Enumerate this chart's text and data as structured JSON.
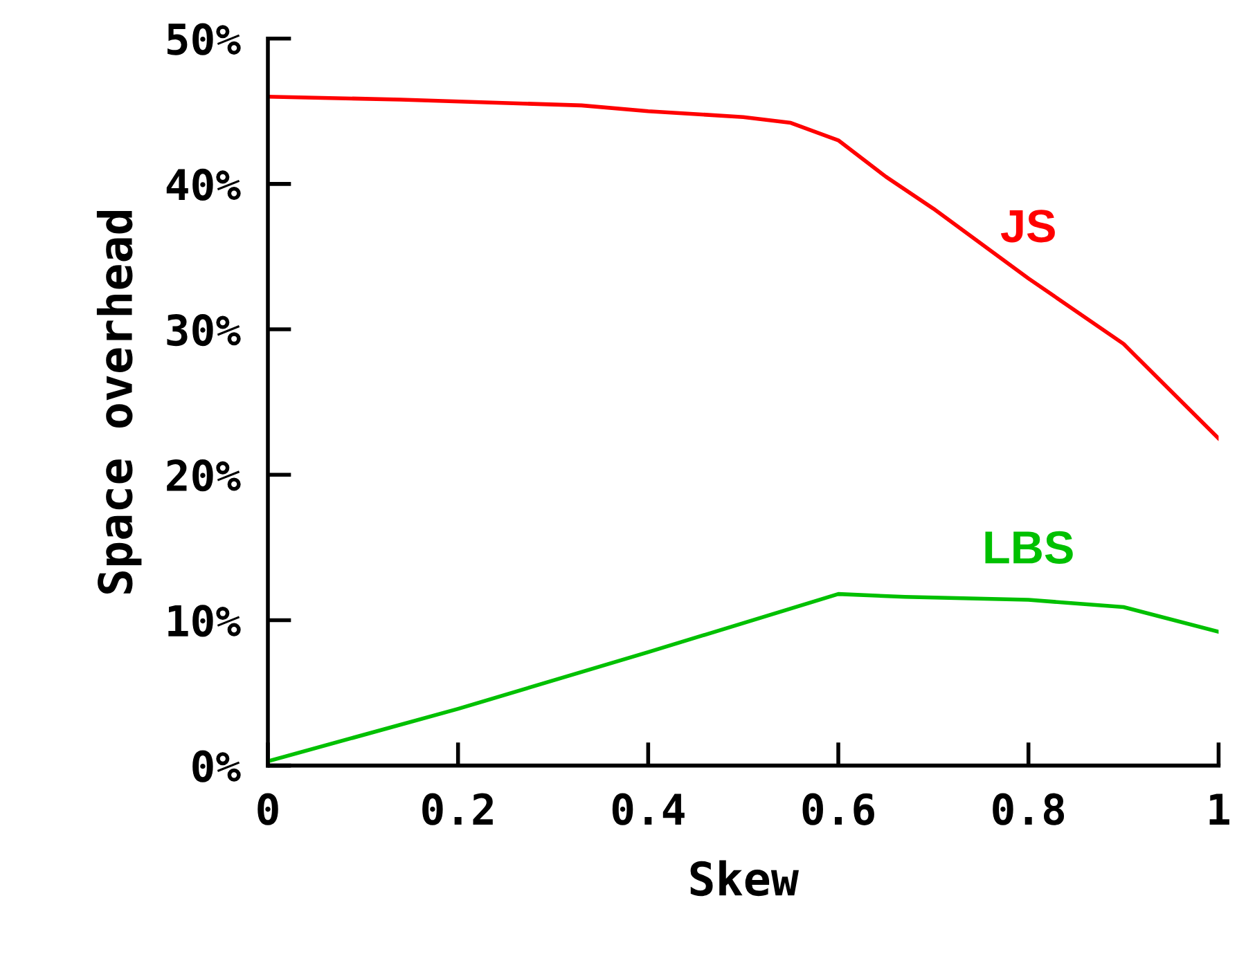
{
  "chart_data": {
    "type": "line",
    "xlabel": "Skew",
    "ylabel": "Space overhead",
    "xlim": [
      0,
      1
    ],
    "ylim": [
      0,
      50
    ],
    "xticks": [
      0,
      0.2,
      0.4,
      0.6,
      0.8,
      1
    ],
    "yticks": [
      {
        "value": 0,
        "label": "0%"
      },
      {
        "value": 10,
        "label": "10%"
      },
      {
        "value": 20,
        "label": "20%"
      },
      {
        "value": 30,
        "label": "30%"
      },
      {
        "value": 40,
        "label": "40%"
      },
      {
        "value": 50,
        "label": "50%"
      }
    ],
    "grid": false,
    "legend": false,
    "marker": "none",
    "line_style": "solid",
    "series": [
      {
        "name": "JS",
        "color": "#ff0000",
        "x": [
          0,
          0.14,
          0.33,
          0.4,
          0.5,
          0.55,
          0.6,
          0.65,
          0.7,
          0.8,
          0.9,
          1.0
        ],
        "values": [
          46.0,
          45.8,
          45.4,
          45.0,
          44.6,
          44.2,
          43.0,
          40.5,
          38.3,
          33.5,
          29.0,
          22.5
        ]
      },
      {
        "name": "LBS",
        "color": "#00c000",
        "x": [
          0,
          0.2,
          0.4,
          0.6,
          0.67,
          0.8,
          0.9,
          1.0
        ],
        "values": [
          0.3,
          3.9,
          7.8,
          11.8,
          11.6,
          11.4,
          10.9,
          9.2
        ]
      }
    ]
  }
}
